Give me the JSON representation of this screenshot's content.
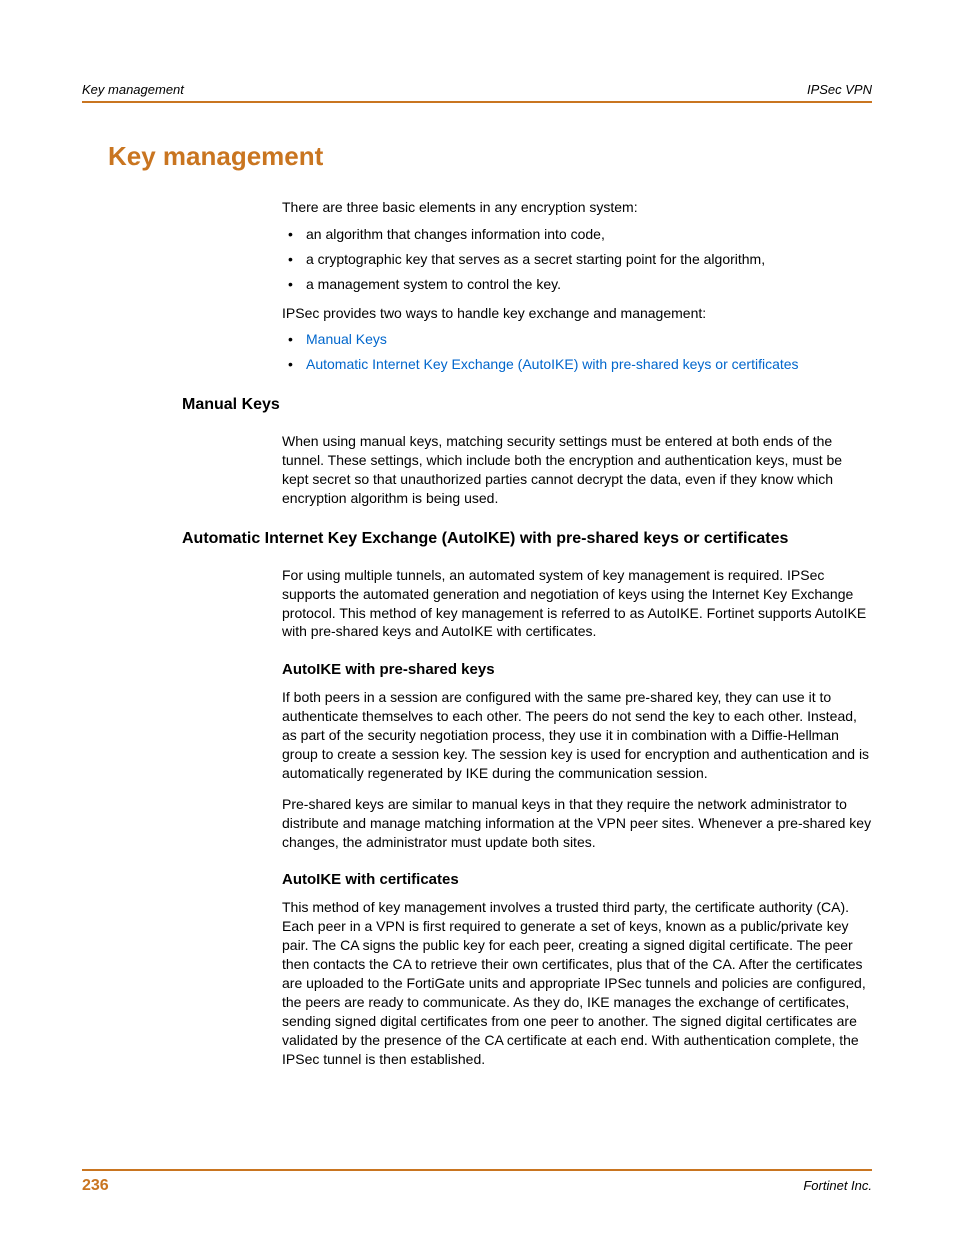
{
  "header": {
    "left": "Key management",
    "right": "IPSec VPN"
  },
  "title": "Key management",
  "intro": {
    "p1": "There are three basic elements in any encryption system:",
    "bullets": [
      "an algorithm that changes information into code,",
      "a cryptographic key that serves as a secret starting point for the algorithm,",
      "a management system to control the key."
    ],
    "p2": "IPSec provides two ways to handle key exchange and management:",
    "links": [
      "Manual Keys",
      "Automatic Internet Key Exchange (AutoIKE) with pre-shared keys or certificates"
    ]
  },
  "section_manual": {
    "heading": "Manual Keys",
    "body": "When using manual keys, matching security settings must be entered at both ends of the tunnel. These settings, which include both the encryption and authentication keys, must be kept secret so that unauthorized parties cannot decrypt the data, even if they know which encryption algorithm is being used."
  },
  "section_autoike": {
    "heading": "Automatic Internet Key Exchange (AutoIKE) with pre-shared keys or certificates",
    "body": "For using multiple tunnels, an automated system of key management is required. IPSec supports the automated generation and negotiation of keys using the Internet Key Exchange protocol. This method of key management is referred to as AutoIKE. Fortinet supports AutoIKE with pre-shared keys and AutoIKE with certificates.",
    "sub_psk": {
      "heading": "AutoIKE with pre-shared keys",
      "p1": "If both peers in a session are configured with the same pre-shared key, they can use it to authenticate themselves to each other. The peers do not send the key to each other. Instead, as part of the security negotiation process, they use it in combination with a Diffie-Hellman group to create a session key. The session key is used for encryption and authentication and is automatically regenerated by IKE during the communication session.",
      "p2": "Pre-shared keys are similar to manual keys in that they require the network administrator to distribute and manage matching information at the VPN peer sites. Whenever a pre-shared key changes, the administrator must update both sites."
    },
    "sub_cert": {
      "heading": "AutoIKE with certificates",
      "p1": "This method of key management involves a trusted third party, the certificate authority (CA). Each peer in a VPN is first required to generate a set of keys, known as a public/private key pair. The CA signs the public key for each peer, creating a signed digital certificate. The peer then contacts the CA to retrieve their own certificates, plus that of the CA. After the certificates are uploaded to the FortiGate units and appropriate IPSec tunnels and policies are configured, the peers are ready to communicate. As they do, IKE manages the exchange of certificates, sending signed digital certificates from one peer to another. The signed digital certificates are validated by the presence of the CA certificate at each end. With authentication complete, the IPSec tunnel is then established."
    }
  },
  "footer": {
    "page_number": "236",
    "right": "Fortinet Inc."
  }
}
